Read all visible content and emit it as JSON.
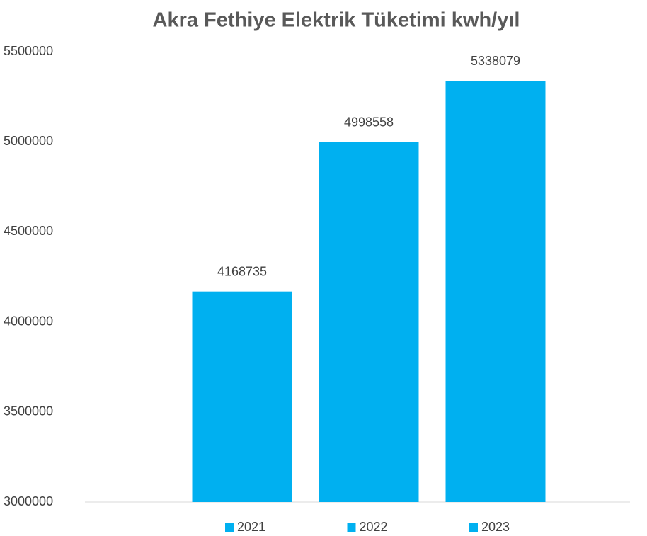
{
  "chart_data": {
    "type": "bar",
    "title": "Akra Fethiye Elektrik Tüketimi kwh/yıl",
    "categories": [
      null
    ],
    "series": [
      {
        "name": "2021",
        "color": "#00b0f0",
        "values": [
          4168735
        ]
      },
      {
        "name": "2022",
        "color": "#00b0f0",
        "values": [
          4998558
        ]
      },
      {
        "name": "2023",
        "color": "#00b0f0",
        "values": [
          5338079
        ]
      }
    ],
    "ylim": [
      3000000,
      5500000
    ],
    "yticks": [
      3000000,
      3500000,
      4000000,
      4500000,
      5000000,
      5500000
    ],
    "grid": false,
    "legend": "bottom"
  }
}
